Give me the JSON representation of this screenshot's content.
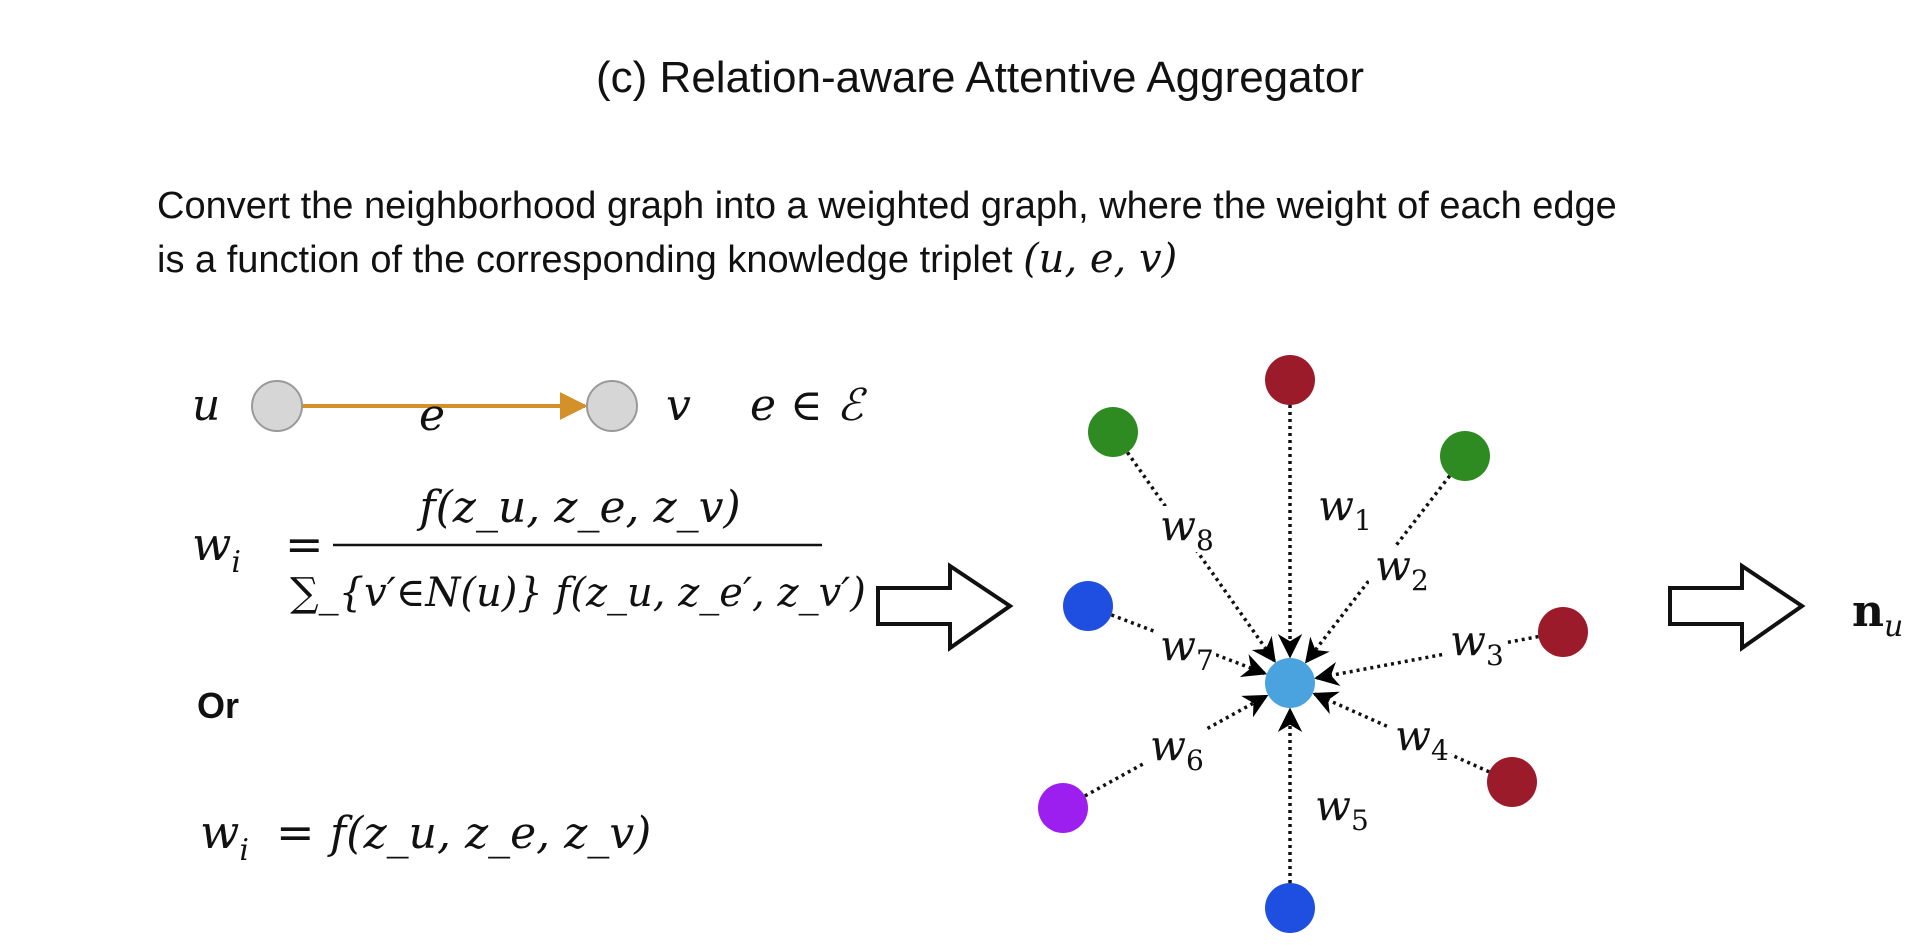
{
  "title": "(c) Relation-aware Attentive Aggregator",
  "description": {
    "line1": "Convert the neighborhood graph into a weighted graph, where the weight of each edge",
    "line2_prefix": "is a function of the corresponding knowledge triplet ",
    "triplet": "(u, e, v)"
  },
  "triplet_diagram": {
    "head_label": "u",
    "relation_label": "e",
    "tail_label": "v",
    "membership": "e ∈ ℰ",
    "edge_color": "#d4912a",
    "node_fill": "#d6d6d6"
  },
  "formula1": {
    "lhs": "w",
    "lhs_sub": "i",
    "eq": "=",
    "numerator": "f(z_u, z_e, z_v)",
    "denominator": "∑_{v′∈N(u)} f(z_u, z_e′, z_v′)"
  },
  "or_label": "Or",
  "formula2": {
    "lhs": "w",
    "lhs_sub": "i",
    "eq": "=",
    "rhs": "f(z_u, z_e, z_v)"
  },
  "graph": {
    "center_color": "#4aa3df",
    "neighbors": [
      {
        "weight": "w1",
        "sub": "1",
        "color": "#9b1b2a"
      },
      {
        "weight": "w2",
        "sub": "2",
        "color": "#2e8b22"
      },
      {
        "weight": "w3",
        "sub": "3",
        "color": "#9b1b2a"
      },
      {
        "weight": "w4",
        "sub": "4",
        "color": "#9b1b2a"
      },
      {
        "weight": "w5",
        "sub": "5",
        "color": "#1f4fe0"
      },
      {
        "weight": "w6",
        "sub": "6",
        "color": "#9d1ff0"
      },
      {
        "weight": "w7",
        "sub": "7",
        "color": "#1f4fe0"
      },
      {
        "weight": "w8",
        "sub": "8",
        "color": "#2e8b22"
      }
    ]
  },
  "output": {
    "symbol": "n",
    "sub": "u"
  }
}
